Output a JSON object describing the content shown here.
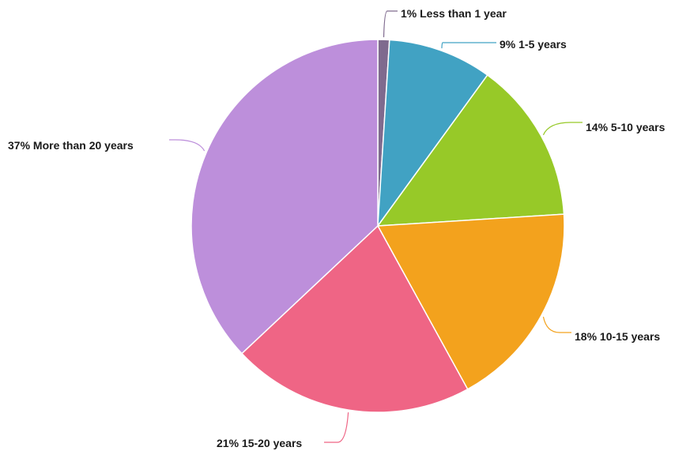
{
  "chart_data": {
    "type": "pie",
    "title": "",
    "start": "top",
    "direction": "clockwise",
    "legend": "none",
    "slices": [
      {
        "label": "Less than 1 year",
        "value": 1,
        "pct_label": "1%",
        "text": "1% Less than 1 year",
        "color": "#7f6a8e"
      },
      {
        "label": "1-5 years",
        "value": 9,
        "pct_label": "9%",
        "text": "9% 1-5 years",
        "color": "#41a2c3"
      },
      {
        "label": "5-10 years",
        "value": 14,
        "pct_label": "14%",
        "text": "14% 5-10 years",
        "color": "#97c928"
      },
      {
        "label": "10-15 years",
        "value": 18,
        "pct_label": "18%",
        "text": "18% 10-15 years",
        "color": "#f3a21d"
      },
      {
        "label": "15-20 years",
        "value": 21,
        "pct_label": "21%",
        "text": "21% 15-20 years",
        "color": "#ef6585"
      },
      {
        "label": "More than 20 years",
        "value": 37,
        "pct_label": "37%",
        "text": "37% More than 20 years",
        "color": "#bd8fdb"
      }
    ]
  }
}
